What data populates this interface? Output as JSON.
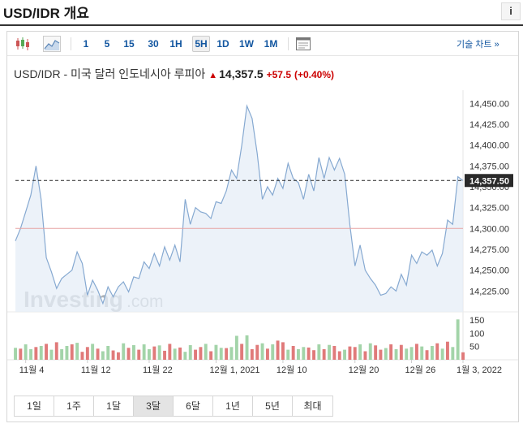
{
  "header": {
    "title": "USD/IDR 개요",
    "info_label": "i"
  },
  "toolbar": {
    "intervals": [
      "1",
      "5",
      "15",
      "30",
      "1H",
      "5H",
      "1D",
      "1W",
      "1M"
    ],
    "active_interval": "5H",
    "advanced_label": "기술 차트 »"
  },
  "quote": {
    "pair": "USD/IDR - 미국 달러 인도네시아 루피아",
    "last": "14,357.5",
    "change": "+57.5",
    "change_pct": "(+0.40%)"
  },
  "ranges": [
    "1일",
    "1주",
    "1달",
    "3달",
    "6달",
    "1년",
    "5년",
    "최대"
  ],
  "active_range": "3달",
  "chart_data": {
    "type": "area",
    "ylim": [
      14200,
      14460
    ],
    "yticks": [
      "14,225.00",
      "14,250.00",
      "14,275.00",
      "14,300.00",
      "14,325.00",
      "14,350.00",
      "14,375.00",
      "14,400.00",
      "14,425.00",
      "14,450.00"
    ],
    "ytick_values": [
      14225,
      14250,
      14275,
      14300,
      14325,
      14350,
      14375,
      14400,
      14425,
      14450
    ],
    "xtick_labels": [
      "11월 4",
      "11월 12",
      "11월 22",
      "12월 1, 2021",
      "12월 10",
      "12월 20",
      "12월 26",
      "1월 3, 2022"
    ],
    "xtick_positions": [
      2,
      14,
      26,
      39,
      52,
      66,
      77,
      87
    ],
    "values": [
      14285,
      14300,
      14320,
      14340,
      14375,
      14335,
      14265,
      14248,
      14228,
      14240,
      14245,
      14250,
      14272,
      14258,
      14220,
      14238,
      14226,
      14210,
      14230,
      14218,
      14230,
      14236,
      14224,
      14242,
      14240,
      14260,
      14252,
      14270,
      14255,
      14278,
      14262,
      14280,
      14260,
      14335,
      14305,
      14325,
      14320,
      14318,
      14312,
      14332,
      14330,
      14345,
      14370,
      14360,
      14400,
      14447,
      14432,
      14390,
      14335,
      14350,
      14340,
      14360,
      14348,
      14378,
      14360,
      14355,
      14335,
      14365,
      14345,
      14385,
      14360,
      14385,
      14370,
      14384,
      14365,
      14305,
      14255,
      14280,
      14250,
      14240,
      14232,
      14220,
      14222,
      14230,
      14225,
      14245,
      14232,
      14268,
      14258,
      14272,
      14268,
      14274,
      14255,
      14270,
      14310,
      14305,
      14362,
      14357.5
    ],
    "last_price": 14357.5,
    "last_label": "14,357.50",
    "reference_line": 14300,
    "volume_ticks": [
      "150",
      "100",
      "50"
    ],
    "volume_tick_values": [
      150,
      100,
      50
    ],
    "volume_max": 165,
    "volume": [
      45,
      42,
      58,
      40,
      48,
      52,
      60,
      38,
      66,
      40,
      52,
      58,
      64,
      30,
      48,
      60,
      42,
      32,
      52,
      35,
      28,
      62,
      45,
      55,
      38,
      58,
      40,
      50,
      54,
      34,
      60,
      42,
      46,
      30,
      55,
      38,
      48,
      60,
      32,
      56,
      45,
      44,
      48,
      90,
      60,
      92,
      40,
      56,
      62,
      42,
      58,
      72,
      66,
      38,
      52,
      40,
      48,
      46,
      36,
      58,
      40,
      56,
      52,
      32,
      38,
      50,
      48,
      58,
      32,
      62,
      54,
      38,
      44,
      58,
      40,
      56,
      42,
      48,
      60,
      50,
      36,
      52,
      62,
      42,
      68,
      48,
      152,
      28
    ],
    "volume_up": [
      1,
      0,
      1,
      1,
      0,
      1,
      0,
      1,
      0,
      1,
      1,
      0,
      1,
      0,
      0,
      1,
      0,
      1,
      1,
      0,
      0,
      1,
      0,
      1,
      0,
      1,
      1,
      0,
      1,
      0,
      0,
      1,
      0,
      1,
      1,
      0,
      0,
      1,
      0,
      1,
      1,
      0,
      1,
      1,
      0,
      1,
      0,
      0,
      1,
      0,
      1,
      0,
      0,
      1,
      0,
      1,
      1,
      0,
      0,
      1,
      0,
      1,
      0,
      0,
      1,
      0,
      0,
      1,
      0,
      1,
      0,
      0,
      1,
      0,
      1,
      0,
      1,
      1,
      0,
      1,
      0,
      1,
      0,
      1,
      0,
      1,
      1,
      0
    ],
    "watermark": "Investing",
    "watermark_suffix": ".com"
  },
  "colors": {
    "line": "#86a9d1",
    "fill": "#e6eef7",
    "reference": "#e7a3a3",
    "vol_up": "#a3d4a9",
    "vol_down": "#e07a7a",
    "label_bg": "#2a2a2a",
    "link": "#1256a0"
  }
}
